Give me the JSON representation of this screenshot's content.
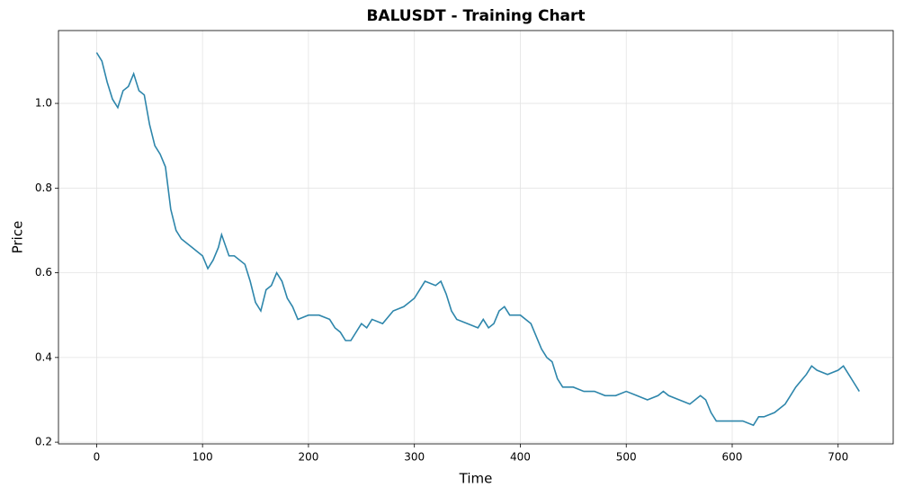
{
  "chart_data": {
    "type": "line",
    "title": "BALUSDT - Training Chart",
    "xlabel": "Time",
    "ylabel": "Price",
    "x": [
      0,
      5,
      10,
      15,
      20,
      25,
      30,
      35,
      40,
      45,
      50,
      55,
      60,
      65,
      70,
      75,
      80,
      90,
      100,
      105,
      110,
      115,
      118,
      125,
      130,
      140,
      145,
      150,
      155,
      160,
      165,
      170,
      175,
      180,
      185,
      190,
      200,
      210,
      220,
      225,
      230,
      235,
      240,
      250,
      255,
      260,
      270,
      280,
      290,
      295,
      300,
      305,
      310,
      320,
      325,
      330,
      335,
      340,
      350,
      360,
      365,
      370,
      375,
      380,
      385,
      390,
      400,
      410,
      415,
      420,
      425,
      430,
      435,
      440,
      450,
      460,
      470,
      480,
      490,
      500,
      510,
      520,
      530,
      535,
      540,
      550,
      560,
      570,
      575,
      580,
      585,
      590,
      600,
      610,
      620,
      625,
      630,
      640,
      650,
      655,
      660,
      670,
      675,
      680,
      690,
      700,
      705,
      710,
      715,
      720
    ],
    "series": [
      {
        "name": "Price",
        "color": "#2e86ab",
        "values": [
          1.12,
          1.1,
          1.05,
          1.01,
          0.99,
          1.03,
          1.04,
          1.07,
          1.03,
          1.02,
          0.95,
          0.9,
          0.88,
          0.85,
          0.75,
          0.7,
          0.68,
          0.66,
          0.64,
          0.61,
          0.63,
          0.66,
          0.69,
          0.64,
          0.64,
          0.62,
          0.58,
          0.53,
          0.51,
          0.56,
          0.57,
          0.6,
          0.58,
          0.54,
          0.52,
          0.49,
          0.5,
          0.5,
          0.49,
          0.47,
          0.46,
          0.44,
          0.44,
          0.48,
          0.47,
          0.49,
          0.48,
          0.51,
          0.52,
          0.53,
          0.54,
          0.56,
          0.58,
          0.57,
          0.58,
          0.55,
          0.51,
          0.49,
          0.48,
          0.47,
          0.49,
          0.47,
          0.48,
          0.51,
          0.52,
          0.5,
          0.5,
          0.48,
          0.45,
          0.42,
          0.4,
          0.39,
          0.35,
          0.33,
          0.33,
          0.32,
          0.32,
          0.31,
          0.31,
          0.32,
          0.31,
          0.3,
          0.31,
          0.32,
          0.31,
          0.3,
          0.29,
          0.31,
          0.3,
          0.27,
          0.25,
          0.25,
          0.25,
          0.25,
          0.24,
          0.26,
          0.26,
          0.27,
          0.29,
          0.31,
          0.33,
          0.36,
          0.38,
          0.37,
          0.36,
          0.37,
          0.38,
          0.36,
          0.34,
          0.32
        ]
      }
    ],
    "xlim": [
      -36,
      752
    ],
    "ylim": [
      0.196,
      1.172
    ],
    "xticks": [
      0,
      100,
      200,
      300,
      400,
      500,
      600,
      700
    ],
    "yticks": [
      0.2,
      0.4,
      0.6,
      0.8,
      {
        "value": 1.0,
        "label": "1.0"
      }
    ],
    "grid": true
  }
}
